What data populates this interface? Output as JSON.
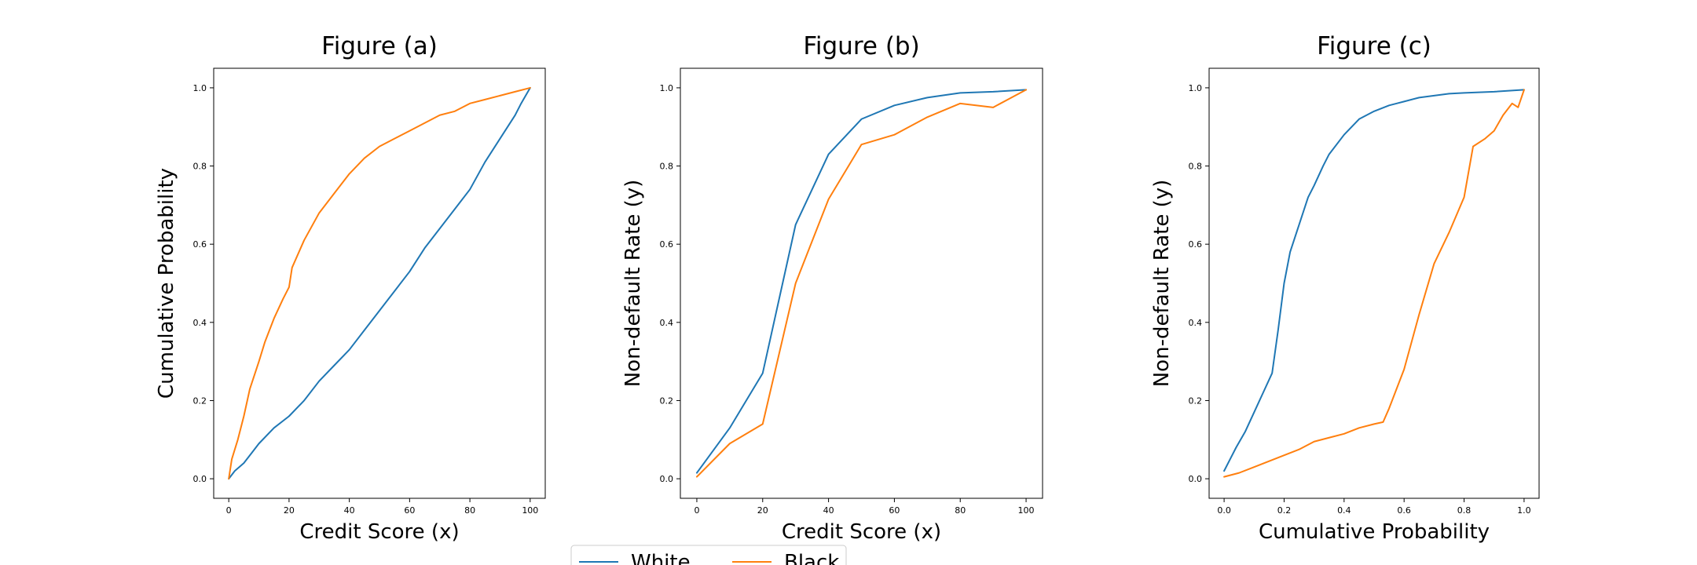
{
  "legend": {
    "placement": "bottom-center",
    "entries": [
      {
        "label": "White",
        "color": "#1f77b4"
      },
      {
        "label": "Black",
        "color": "#ff7f0e"
      }
    ]
  },
  "chart_data": [
    {
      "type": "line",
      "title": "Figure (a)",
      "xlabel": "Credit Score (x)",
      "ylabel": "Cumulative Probability",
      "xlim": [
        -5,
        105
      ],
      "ylim": [
        -0.05,
        1.05
      ],
      "xticks": [
        0,
        20,
        40,
        60,
        80,
        100
      ],
      "yticks": [
        0.0,
        0.2,
        0.4,
        0.6,
        0.8,
        1.0
      ],
      "xtick_labels": [
        "0",
        "20",
        "40",
        "60",
        "80",
        "100"
      ],
      "ytick_labels": [
        "0.0",
        "0.2",
        "0.4",
        "0.6",
        "0.8",
        "1.0"
      ],
      "grid": false,
      "series": [
        {
          "name": "White",
          "color": "#1f77b4",
          "x": [
            0,
            2,
            5,
            8,
            10,
            15,
            20,
            25,
            30,
            35,
            40,
            45,
            50,
            55,
            60,
            65,
            70,
            75,
            80,
            85,
            90,
            95,
            97,
            100
          ],
          "y": [
            0.0,
            0.02,
            0.04,
            0.07,
            0.09,
            0.13,
            0.16,
            0.2,
            0.25,
            0.29,
            0.33,
            0.38,
            0.43,
            0.48,
            0.53,
            0.59,
            0.64,
            0.69,
            0.74,
            0.81,
            0.87,
            0.93,
            0.96,
            1.0
          ]
        },
        {
          "name": "Black",
          "color": "#ff7f0e",
          "x": [
            0,
            1,
            3,
            5,
            7,
            10,
            12,
            15,
            18,
            20,
            21,
            25,
            30,
            35,
            40,
            45,
            50,
            55,
            60,
            65,
            70,
            75,
            80,
            85,
            90,
            95,
            100
          ],
          "y": [
            0.0,
            0.05,
            0.1,
            0.16,
            0.23,
            0.3,
            0.35,
            0.41,
            0.46,
            0.49,
            0.54,
            0.61,
            0.68,
            0.73,
            0.78,
            0.82,
            0.85,
            0.87,
            0.89,
            0.91,
            0.93,
            0.94,
            0.96,
            0.97,
            0.98,
            0.99,
            1.0
          ]
        }
      ]
    },
    {
      "type": "line",
      "title": "Figure (b)",
      "xlabel": "Credit Score (x)",
      "ylabel": "Non-default Rate (y)",
      "xlim": [
        -5,
        105
      ],
      "ylim": [
        -0.05,
        1.05
      ],
      "xticks": [
        0,
        20,
        40,
        60,
        80,
        100
      ],
      "yticks": [
        0.0,
        0.2,
        0.4,
        0.6,
        0.8,
        1.0
      ],
      "xtick_labels": [
        "0",
        "20",
        "40",
        "60",
        "80",
        "100"
      ],
      "ytick_labels": [
        "0.0",
        "0.2",
        "0.4",
        "0.6",
        "0.8",
        "1.0"
      ],
      "grid": false,
      "series": [
        {
          "name": "White",
          "color": "#1f77b4",
          "x": [
            0,
            10,
            20,
            30,
            40,
            50,
            60,
            70,
            80,
            90,
            100
          ],
          "y": [
            0.015,
            0.13,
            0.27,
            0.65,
            0.83,
            0.92,
            0.955,
            0.975,
            0.987,
            0.99,
            0.995
          ]
        },
        {
          "name": "Black",
          "color": "#ff7f0e",
          "x": [
            0,
            10,
            20,
            30,
            40,
            50,
            60,
            70,
            80,
            90,
            100
          ],
          "y": [
            0.005,
            0.09,
            0.14,
            0.5,
            0.715,
            0.855,
            0.88,
            0.925,
            0.96,
            0.95,
            0.995
          ]
        }
      ]
    },
    {
      "type": "line",
      "title": "Figure (c)",
      "xlabel": "Cumulative Probability",
      "ylabel": "Non-default Rate (y)",
      "xlim": [
        -0.05,
        1.05
      ],
      "ylim": [
        -0.05,
        1.05
      ],
      "xticks": [
        0.0,
        0.2,
        0.4,
        0.6,
        0.8,
        1.0
      ],
      "yticks": [
        0.0,
        0.2,
        0.4,
        0.6,
        0.8,
        1.0
      ],
      "xtick_labels": [
        "0.0",
        "0.2",
        "0.4",
        "0.6",
        "0.8",
        "1.0"
      ],
      "ytick_labels": [
        "0.0",
        "0.2",
        "0.4",
        "0.6",
        "0.8",
        "1.0"
      ],
      "grid": false,
      "series": [
        {
          "name": "White",
          "color": "#1f77b4",
          "x": [
            0.0,
            0.02,
            0.04,
            0.07,
            0.1,
            0.13,
            0.16,
            0.18,
            0.2,
            0.22,
            0.25,
            0.28,
            0.3,
            0.33,
            0.35,
            0.4,
            0.45,
            0.5,
            0.55,
            0.6,
            0.65,
            0.7,
            0.75,
            0.8,
            0.9,
            1.0
          ],
          "y": [
            0.02,
            0.05,
            0.08,
            0.12,
            0.17,
            0.22,
            0.27,
            0.38,
            0.5,
            0.58,
            0.65,
            0.72,
            0.75,
            0.8,
            0.83,
            0.88,
            0.92,
            0.94,
            0.955,
            0.965,
            0.975,
            0.98,
            0.985,
            0.987,
            0.99,
            0.995
          ]
        },
        {
          "name": "Black",
          "color": "#ff7f0e",
          "x": [
            0.0,
            0.05,
            0.1,
            0.15,
            0.2,
            0.25,
            0.3,
            0.35,
            0.4,
            0.45,
            0.5,
            0.53,
            0.55,
            0.6,
            0.65,
            0.7,
            0.75,
            0.8,
            0.83,
            0.87,
            0.9,
            0.93,
            0.96,
            0.98,
            1.0
          ],
          "y": [
            0.005,
            0.015,
            0.03,
            0.045,
            0.06,
            0.075,
            0.095,
            0.105,
            0.115,
            0.13,
            0.14,
            0.145,
            0.18,
            0.28,
            0.42,
            0.55,
            0.63,
            0.72,
            0.85,
            0.87,
            0.89,
            0.93,
            0.96,
            0.95,
            0.995
          ]
        }
      ]
    }
  ]
}
